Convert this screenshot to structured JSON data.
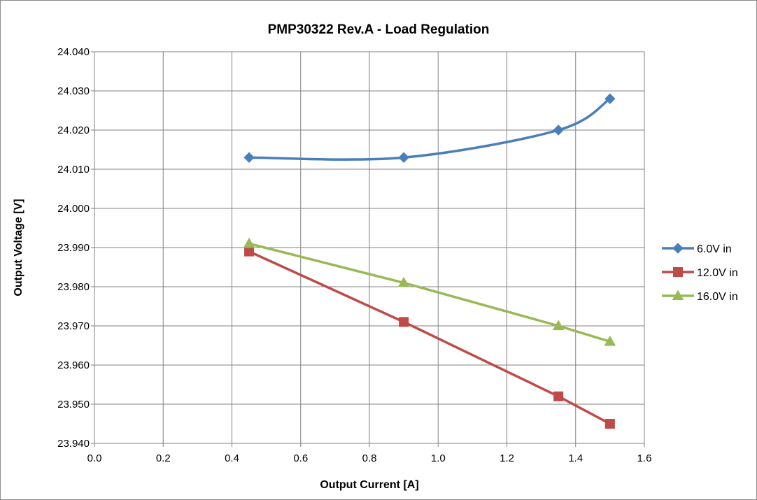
{
  "chart_data": {
    "type": "line",
    "title": "PMP30322 Rev.A - Load Regulation",
    "xlabel": "Output Current [A]",
    "ylabel": "Output Voltage [V]",
    "xlim": [
      0.0,
      1.6
    ],
    "ylim": [
      23.94,
      24.04
    ],
    "x_ticks": [
      "0.0",
      "0.2",
      "0.4",
      "0.6",
      "0.8",
      "1.0",
      "1.2",
      "1.4",
      "1.6"
    ],
    "y_ticks": [
      "23.940",
      "23.950",
      "23.960",
      "23.970",
      "23.980",
      "23.990",
      "24.000",
      "24.010",
      "24.020",
      "24.030",
      "24.040"
    ],
    "grid": true,
    "legend_position": "right",
    "series": [
      {
        "name": "6.0V in",
        "color": "#4a7ebb",
        "marker": "diamond",
        "smooth": true,
        "x": [
          0.45,
          0.9,
          1.35,
          1.5
        ],
        "y": [
          24.013,
          24.013,
          24.02,
          24.028
        ]
      },
      {
        "name": "12.0V in",
        "color": "#be4b48",
        "marker": "square",
        "smooth": false,
        "x": [
          0.45,
          0.9,
          1.35,
          1.5
        ],
        "y": [
          23.989,
          23.971,
          23.952,
          23.945
        ]
      },
      {
        "name": "16.0V in",
        "color": "#98b954",
        "marker": "triangle",
        "smooth": false,
        "x": [
          0.45,
          0.9,
          1.35,
          1.5
        ],
        "y": [
          23.991,
          23.981,
          23.97,
          23.966
        ]
      }
    ]
  }
}
